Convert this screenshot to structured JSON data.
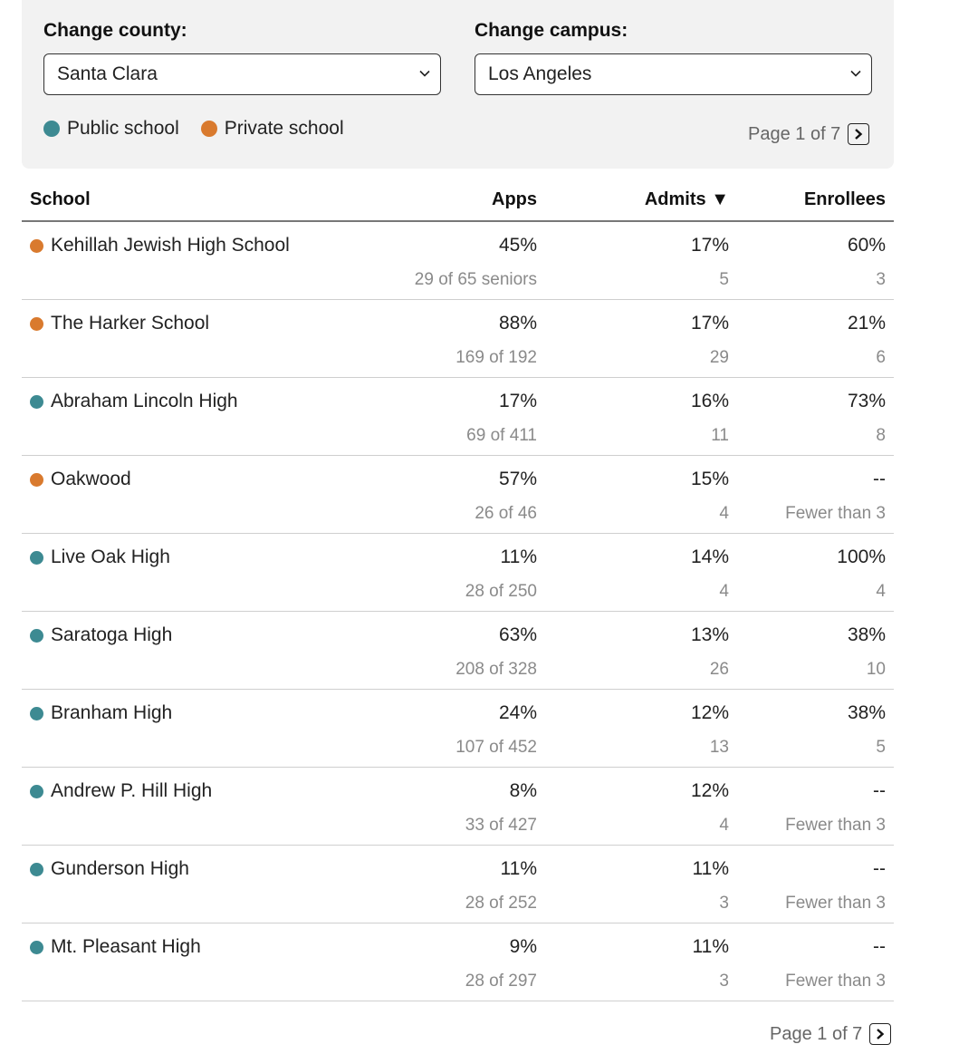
{
  "controls": {
    "county_label": "Change county:",
    "county_value": "Santa Clara",
    "campus_label": "Change campus:",
    "campus_value": "Los Angeles"
  },
  "legend": {
    "public": "Public school",
    "private": "Private school",
    "public_color": "#3d8a92",
    "private_color": "#d97a2e"
  },
  "pager": {
    "text": "Page 1 of 7"
  },
  "table": {
    "headers": {
      "school": "School",
      "apps": "Apps",
      "admits": "Admits ▼",
      "enrollees": "Enrollees"
    },
    "rows": [
      {
        "school": "Kehillah Jewish High School",
        "type": "private",
        "apps": "45%",
        "apps_sub": "29 of 65 seniors",
        "admits": "17%",
        "admits_sub": "5",
        "enrollees": "60%",
        "enrollees_sub": "3"
      },
      {
        "school": "The Harker School",
        "type": "private",
        "apps": "88%",
        "apps_sub": "169 of 192",
        "admits": "17%",
        "admits_sub": "29",
        "enrollees": "21%",
        "enrollees_sub": "6"
      },
      {
        "school": "Abraham Lincoln High",
        "type": "public",
        "apps": "17%",
        "apps_sub": "69 of 411",
        "admits": "16%",
        "admits_sub": "11",
        "enrollees": "73%",
        "enrollees_sub": "8"
      },
      {
        "school": "Oakwood",
        "type": "private",
        "apps": "57%",
        "apps_sub": "26 of 46",
        "admits": "15%",
        "admits_sub": "4",
        "enrollees": "--",
        "enrollees_sub": "Fewer than 3"
      },
      {
        "school": "Live Oak High",
        "type": "public",
        "apps": "11%",
        "apps_sub": "28 of 250",
        "admits": "14%",
        "admits_sub": "4",
        "enrollees": "100%",
        "enrollees_sub": "4"
      },
      {
        "school": "Saratoga High",
        "type": "public",
        "apps": "63%",
        "apps_sub": "208 of 328",
        "admits": "13%",
        "admits_sub": "26",
        "enrollees": "38%",
        "enrollees_sub": "10"
      },
      {
        "school": "Branham High",
        "type": "public",
        "apps": "24%",
        "apps_sub": "107 of 452",
        "admits": "12%",
        "admits_sub": "13",
        "enrollees": "38%",
        "enrollees_sub": "5"
      },
      {
        "school": "Andrew P. Hill High",
        "type": "public",
        "apps": "8%",
        "apps_sub": "33 of 427",
        "admits": "12%",
        "admits_sub": "4",
        "enrollees": "--",
        "enrollees_sub": "Fewer than 3"
      },
      {
        "school": "Gunderson High",
        "type": "public",
        "apps": "11%",
        "apps_sub": "28 of 252",
        "admits": "11%",
        "admits_sub": "3",
        "enrollees": "--",
        "enrollees_sub": "Fewer than 3"
      },
      {
        "school": "Mt. Pleasant High",
        "type": "public",
        "apps": "9%",
        "apps_sub": "28 of 297",
        "admits": "11%",
        "admits_sub": "3",
        "enrollees": "--",
        "enrollees_sub": "Fewer than 3"
      }
    ]
  }
}
